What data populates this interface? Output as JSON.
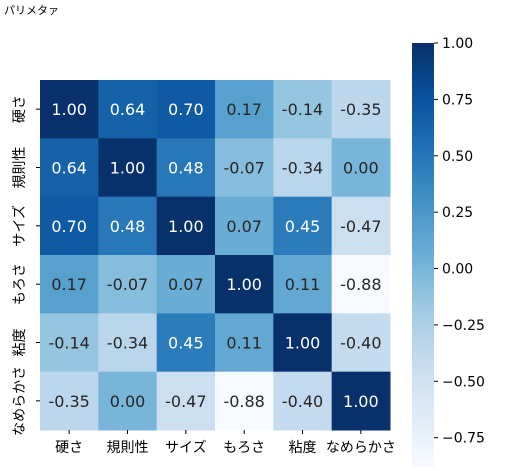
{
  "page_title": "パリメタァ",
  "chart_data": {
    "type": "heatmap",
    "title": "パリメタァ",
    "xlabel": "",
    "ylabel": "",
    "categories": [
      "硬さ",
      "規則性",
      "サイズ",
      "もろさ",
      "粘度",
      "なめらかさ"
    ],
    "matrix": [
      [
        1.0,
        0.64,
        0.7,
        0.17,
        -0.14,
        -0.35
      ],
      [
        0.64,
        1.0,
        0.48,
        -0.07,
        -0.34,
        0.0
      ],
      [
        0.7,
        0.48,
        1.0,
        0.07,
        0.45,
        -0.47
      ],
      [
        0.17,
        -0.07,
        0.07,
        1.0,
        0.11,
        -0.88
      ],
      [
        -0.14,
        -0.34,
        0.45,
        0.11,
        1.0,
        -0.4
      ],
      [
        -0.35,
        0.0,
        -0.47,
        -0.88,
        -0.4,
        1.0
      ]
    ],
    "value_labels": [
      [
        "1.00",
        "0.64",
        "0.70",
        "0.17",
        "-0.14",
        "-0.35"
      ],
      [
        "0.64",
        "1.00",
        "0.48",
        "-0.07",
        "-0.34",
        "0.00"
      ],
      [
        "0.70",
        "0.48",
        "1.00",
        "0.07",
        "0.45",
        "-0.47"
      ],
      [
        "0.17",
        "-0.07",
        "0.07",
        "1.00",
        "0.11",
        "-0.88"
      ],
      [
        "-0.14",
        "-0.34",
        "0.45",
        "0.11",
        "1.00",
        "-0.40"
      ],
      [
        "-0.35",
        "0.00",
        "-0.47",
        "-0.88",
        "-0.40",
        "1.00"
      ]
    ],
    "colormap": "Blues",
    "colorbar": {
      "range": [
        -0.88,
        1.0
      ],
      "ticks": [
        1.0,
        0.75,
        0.5,
        0.25,
        0.0,
        -0.25,
        -0.5,
        -0.75
      ],
      "tick_labels": [
        "1.00",
        "0.75",
        "0.50",
        "0.25",
        "0.00",
        "−0.25",
        "−0.50",
        "−0.75"
      ],
      "placement": "right"
    },
    "colors": {
      "low": "#f7fbff",
      "high": "#08306b",
      "dark_text": "#262626",
      "light_text": "#ffffff"
    }
  }
}
